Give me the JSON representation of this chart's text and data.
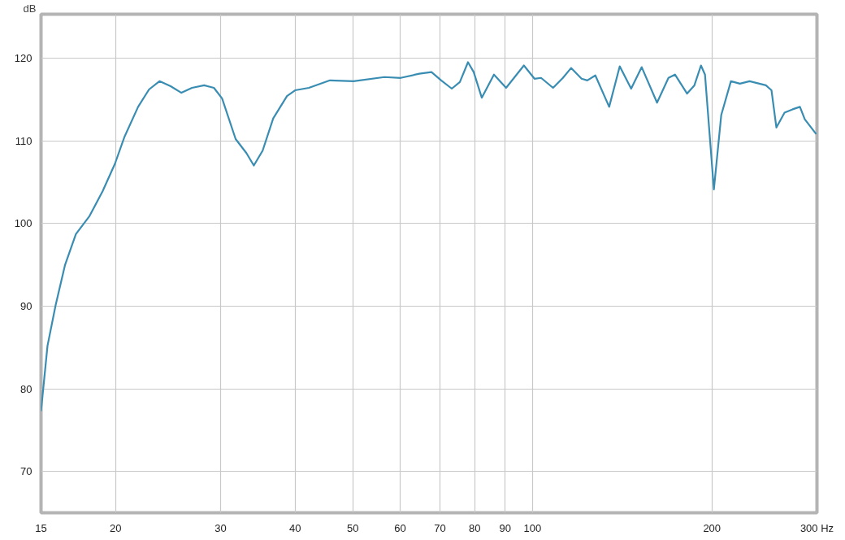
{
  "chart_data": {
    "type": "line",
    "ylabel": "dB",
    "log": "x",
    "grid": true,
    "marker": "none",
    "line_style": "solid",
    "xlim": [
      15,
      300
    ],
    "ylim": [
      65,
      125.3
    ],
    "xticks": [
      15,
      20,
      30,
      40,
      50,
      60,
      70,
      80,
      90,
      100,
      200,
      {
        "value": 300,
        "label": "300 Hz"
      }
    ],
    "yticks": [
      70,
      80,
      90,
      100,
      110,
      120
    ],
    "x": [
      15.0,
      15.38,
      15.87,
      16.46,
      17.16,
      18.09,
      19.03,
      19.95,
      20.71,
      21.82,
      22.76,
      23.7,
      24.74,
      25.79,
      26.87,
      28.16,
      29.24,
      30.18,
      31.8,
      33.15,
      34.11,
      35.29,
      36.76,
      38.77,
      40.0,
      42.19,
      45.77,
      50.13,
      56.48,
      60.13,
      64.62,
      67.73,
      70.32,
      73.25,
      75.57,
      77.98,
      79.72,
      82.24,
      86.2,
      90.34,
      96.77,
      100.8,
      103.4,
      108.3,
      112.5,
      116.1,
      120.9,
      123.6,
      127.5,
      134.5,
      140.1,
      146.4,
      152.5,
      161.8,
      169.1,
      173.4,
      181.7,
      186.9,
      191.7,
      194.7,
      201.5,
      207.3,
      215.2,
      222.8,
      231.3,
      237.2,
      246.3,
      251.7,
      256.5,
      264.7,
      273.1,
      280.9,
      286.2,
      299.1
    ],
    "series": [
      {
        "color": "#3a8db2",
        "values": [
          77.3,
          85.2,
          90.1,
          95.0,
          98.7,
          100.9,
          103.9,
          107.2,
          110.5,
          114.1,
          116.2,
          117.2,
          116.6,
          115.8,
          116.4,
          116.7,
          116.4,
          115.1,
          110.2,
          108.5,
          107.0,
          108.8,
          112.7,
          115.4,
          116.1,
          116.4,
          117.3,
          117.2,
          117.7,
          117.6,
          118.1,
          118.3,
          117.3,
          116.3,
          117.1,
          119.5,
          118.3,
          115.2,
          118.0,
          116.4,
          119.1,
          117.5,
          117.6,
          116.4,
          117.6,
          118.8,
          117.5,
          117.3,
          117.9,
          114.1,
          119.0,
          116.3,
          118.9,
          114.6,
          117.6,
          118.0,
          115.7,
          116.7,
          119.1,
          118.0,
          104.1,
          113.1,
          117.2,
          116.9,
          117.2,
          117.0,
          116.7,
          116.1,
          111.6,
          113.4,
          113.8,
          114.1,
          112.6,
          110.8
        ]
      }
    ]
  }
}
